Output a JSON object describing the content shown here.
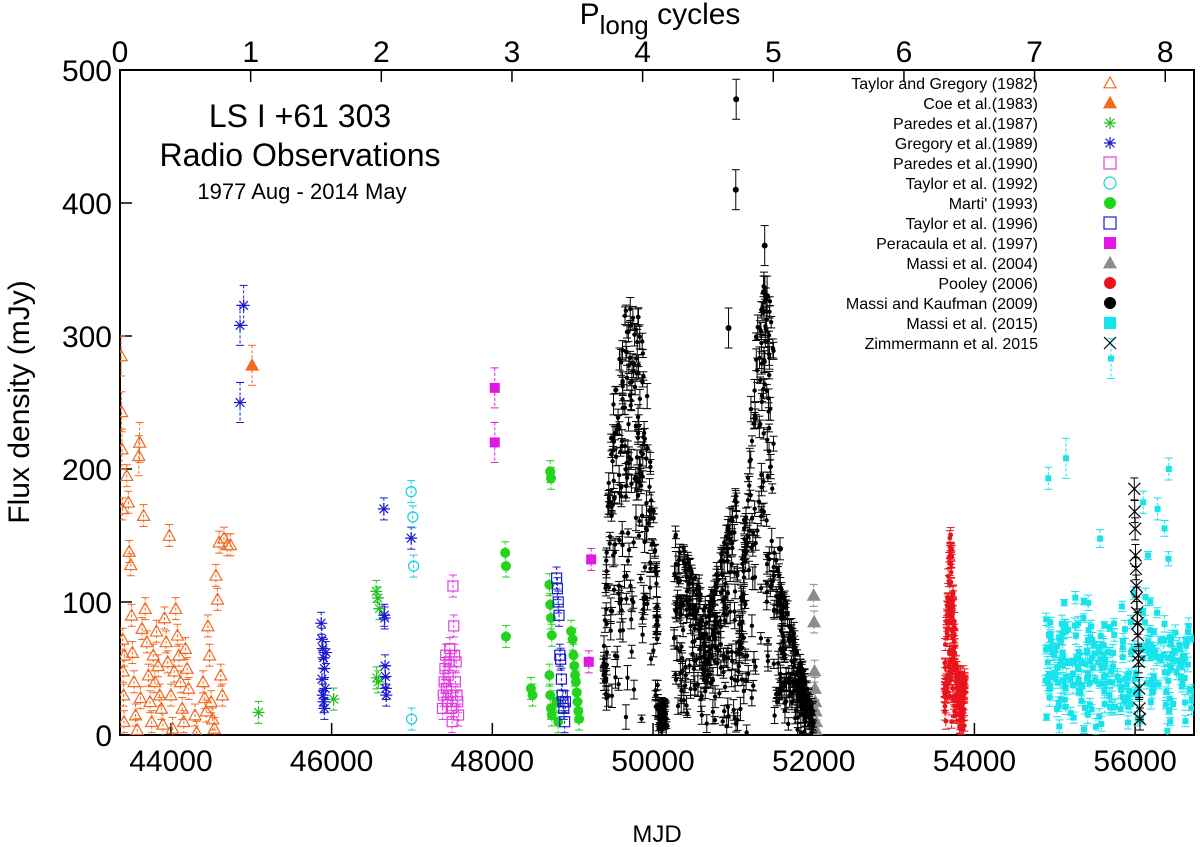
{
  "chart_data": {
    "type": "scatter",
    "annotation": {
      "line1": "LS I +61 303",
      "line2": "Radio Observations",
      "line3": "1977 Aug - 2014 May",
      "line1_color": "#e8141c"
    },
    "xlabel": "MJD",
    "ylabel": "Flux density (mJy)",
    "x2label_main": "P",
    "x2label_sub": "long",
    "x2label_rest": " cycles",
    "xlim": [
      43366,
      56733
    ],
    "ylim": [
      0,
      500
    ],
    "xticks": [
      {
        "v": 44000,
        "label": "44000"
      },
      {
        "v": 46000,
        "label": "46000"
      },
      {
        "v": 48000,
        "label": "48000"
      },
      {
        "v": 50000,
        "label": "50000"
      },
      {
        "v": 52000,
        "label": "52000"
      },
      {
        "v": 54000,
        "label": "54000"
      },
      {
        "v": 56000,
        "label": "56000"
      }
    ],
    "yticks": [
      {
        "v": 0,
        "label": "0"
      },
      {
        "v": 100,
        "label": "100"
      },
      {
        "v": 200,
        "label": "200"
      },
      {
        "v": 300,
        "label": "300"
      },
      {
        "v": 400,
        "label": "400"
      },
      {
        "v": 500,
        "label": "500"
      }
    ],
    "x2ticks": [
      {
        "v": 0,
        "label": "0"
      },
      {
        "v": 1,
        "label": "1"
      },
      {
        "v": 2,
        "label": "2"
      },
      {
        "v": 3,
        "label": "3"
      },
      {
        "v": 4,
        "label": "4"
      },
      {
        "v": 5,
        "label": "5"
      },
      {
        "v": 6,
        "label": "6"
      },
      {
        "v": 7,
        "label": "7"
      },
      {
        "v": 8,
        "label": "8"
      }
    ],
    "x2lim": [
      0,
      8.22
    ],
    "legend_position": "top-right",
    "series": [
      {
        "name": "Taylor and Gregory (1982)",
        "marker": "triangle-open",
        "color": "#f26a21",
        "points": [
          [
            43380,
            285
          ],
          [
            43385,
            243
          ],
          [
            43390,
            215
          ],
          [
            43395,
            170
          ],
          [
            43400,
            72
          ],
          [
            43405,
            48
          ],
          [
            43410,
            30
          ],
          [
            43415,
            10
          ],
          [
            43420,
            60
          ],
          [
            43450,
            195
          ],
          [
            43470,
            175
          ],
          [
            43480,
            138
          ],
          [
            43500,
            128
          ],
          [
            43510,
            90
          ],
          [
            43520,
            62
          ],
          [
            43540,
            40
          ],
          [
            43560,
            15
          ],
          [
            43580,
            4
          ],
          [
            43600,
            210
          ],
          [
            43610,
            220
          ],
          [
            43620,
            28
          ],
          [
            43640,
            80
          ],
          [
            43660,
            165
          ],
          [
            43680,
            95
          ],
          [
            43700,
            70
          ],
          [
            43720,
            45
          ],
          [
            43740,
            25
          ],
          [
            43760,
            10
          ],
          [
            43780,
            60
          ],
          [
            43800,
            40
          ],
          [
            43820,
            78
          ],
          [
            43840,
            52
          ],
          [
            43860,
            30
          ],
          [
            43880,
            20
          ],
          [
            43900,
            8
          ],
          [
            43920,
            88
          ],
          [
            43940,
            70
          ],
          [
            43960,
            55
          ],
          [
            43980,
            150
          ],
          [
            44000,
            30
          ],
          [
            44020,
            5
          ],
          [
            44040,
            48
          ],
          [
            44060,
            95
          ],
          [
            44080,
            75
          ],
          [
            44100,
            60
          ],
          [
            44120,
            40
          ],
          [
            44140,
            20
          ],
          [
            44160,
            10
          ],
          [
            44180,
            65
          ],
          [
            44200,
            50
          ],
          [
            44220,
            35
          ],
          [
            44300,
            15
          ],
          [
            44320,
            2
          ],
          [
            44400,
            40
          ],
          [
            44420,
            28
          ],
          [
            44440,
            18
          ],
          [
            44460,
            82
          ],
          [
            44480,
            60
          ],
          [
            44500,
            25
          ],
          [
            44520,
            12
          ],
          [
            44540,
            5
          ],
          [
            44560,
            120
          ],
          [
            44580,
            102
          ],
          [
            44600,
            145
          ],
          [
            44620,
            45
          ],
          [
            44640,
            30
          ],
          [
            44660,
            148
          ],
          [
            44700,
            143
          ],
          [
            44740,
            143
          ]
        ]
      },
      {
        "name": "Coe et al.(1983)",
        "marker": "triangle-filled",
        "color": "#f26a21",
        "points": [
          [
            45010,
            278
          ]
        ]
      },
      {
        "name": "Paredes et al.(1987)",
        "marker": "asterisk",
        "color": "#22c11f",
        "points": [
          [
            45090,
            17
          ],
          [
            46025,
            27
          ],
          [
            46555,
            108
          ],
          [
            46575,
            103
          ],
          [
            46595,
            95
          ],
          [
            46560,
            43
          ],
          [
            46580,
            40
          ]
        ]
      },
      {
        "name": "Gregory et al.(1989)",
        "marker": "asterisk",
        "color": "#1a1ad1",
        "points": [
          [
            44860,
            308
          ],
          [
            44905,
            323
          ],
          [
            44860,
            250
          ],
          [
            45870,
            84
          ],
          [
            45880,
            72
          ],
          [
            45890,
            65
          ],
          [
            45900,
            58
          ],
          [
            45910,
            50
          ],
          [
            45880,
            42
          ],
          [
            45890,
            30
          ],
          [
            45900,
            25
          ],
          [
            45910,
            20
          ],
          [
            45920,
            35
          ],
          [
            45930,
            62
          ],
          [
            46650,
            170
          ],
          [
            46655,
            90
          ],
          [
            46660,
            88
          ],
          [
            46665,
            52
          ],
          [
            46670,
            44
          ],
          [
            46675,
            35
          ],
          [
            46680,
            30
          ],
          [
            46990,
            148
          ]
        ]
      },
      {
        "name": "Paredes et al.(1990)",
        "marker": "square-open",
        "color": "#e040e0",
        "points": [
          [
            47380,
            20
          ],
          [
            47390,
            30
          ],
          [
            47400,
            40
          ],
          [
            47410,
            50
          ],
          [
            47420,
            60
          ],
          [
            47430,
            35
          ],
          [
            47440,
            25
          ],
          [
            47450,
            45
          ],
          [
            47460,
            55
          ],
          [
            47470,
            65
          ],
          [
            47480,
            30
          ],
          [
            47490,
            20
          ],
          [
            47500,
            10
          ],
          [
            47510,
            112
          ],
          [
            47520,
            82
          ],
          [
            47530,
            60
          ],
          [
            47540,
            40
          ],
          [
            47550,
            55
          ],
          [
            47560,
            30
          ],
          [
            47570,
            25
          ],
          [
            47580,
            15
          ]
        ]
      },
      {
        "name": "Taylor et al. (1992)",
        "marker": "circle-open",
        "color": "#16d0e0",
        "points": [
          [
            46990,
            183
          ],
          [
            47010,
            164
          ],
          [
            47020,
            127
          ],
          [
            46995,
            12
          ]
        ]
      },
      {
        "name": "Marti' (1993)",
        "marker": "circle-filled",
        "color": "#22d41c",
        "points": [
          [
            48160,
            137
          ],
          [
            48170,
            127
          ],
          [
            48170,
            74
          ],
          [
            48480,
            35
          ],
          [
            48500,
            30
          ],
          [
            48720,
            198
          ],
          [
            48730,
            193
          ],
          [
            48710,
            113
          ],
          [
            48720,
            98
          ],
          [
            48730,
            88
          ],
          [
            48740,
            75
          ],
          [
            48710,
            45
          ],
          [
            48720,
            30
          ],
          [
            48730,
            20
          ],
          [
            48740,
            15
          ],
          [
            48800,
            25
          ],
          [
            48820,
            10
          ],
          [
            48980,
            78
          ],
          [
            49000,
            72
          ],
          [
            49010,
            60
          ],
          [
            49020,
            52
          ],
          [
            49030,
            45
          ],
          [
            49040,
            40
          ],
          [
            49050,
            32
          ],
          [
            49060,
            25
          ],
          [
            49070,
            18
          ],
          [
            49080,
            12
          ]
        ]
      },
      {
        "name": "Taylor et al.  (1996)",
        "marker": "square-open",
        "color": "#1a1ad1",
        "points": [
          [
            48800,
            118
          ],
          [
            48810,
            110
          ],
          [
            48820,
            100
          ],
          [
            48830,
            90
          ],
          [
            48840,
            60
          ],
          [
            48850,
            57
          ],
          [
            48860,
            42
          ],
          [
            48870,
            30
          ],
          [
            48880,
            25
          ],
          [
            48890,
            20
          ],
          [
            48900,
            10
          ],
          [
            48910,
            25
          ]
        ]
      },
      {
        "name": "Peracaula et al. (1997)",
        "marker": "square-filled",
        "color": "#e018e0",
        "points": [
          [
            48030,
            261
          ],
          [
            48030,
            220
          ],
          [
            49230,
            132
          ],
          [
            49200,
            55
          ]
        ]
      },
      {
        "name": "Massi et al. (2004)",
        "marker": "triangle-filled",
        "color": "#8c8c8c",
        "points": [
          [
            52000,
            105
          ],
          [
            52005,
            85
          ],
          [
            52010,
            48
          ],
          [
            52015,
            35
          ],
          [
            52020,
            25
          ],
          [
            52025,
            18
          ],
          [
            52030,
            10
          ],
          [
            52035,
            3
          ]
        ]
      },
      {
        "name": "Pooley (2006)",
        "marker": "circle-filled",
        "color": "#e8141c",
        "cloud": {
          "x0": 53630,
          "x1": 53880,
          "n": 200,
          "peak": 155,
          "shape": "spike",
          "size": 2.4
        }
      },
      {
        "name": "Massi and Kaufman (2009)",
        "marker": "circle-filled",
        "color": "#000000",
        "cloud": {
          "x0": 49380,
          "x1": 52000,
          "n": 900,
          "shape": "mk09",
          "size": 2.2
        },
        "points": [
          [
            50940,
            306
          ],
          [
            51380,
            333
          ],
          [
            51390,
            368
          ],
          [
            51420,
            330
          ],
          [
            51035,
            478
          ],
          [
            51030,
            410
          ],
          [
            51580,
            140
          ],
          [
            51590,
            105
          ],
          [
            51600,
            88
          ]
        ]
      },
      {
        "name": "Massi et al. (2015)",
        "marker": "square-filled",
        "color": "#17e3ec",
        "cloud": {
          "x0": 54880,
          "x1": 56720,
          "n": 260,
          "shape": "mas15",
          "size": 3
        },
        "points": [
          [
            54920,
            193
          ],
          [
            55140,
            208
          ],
          [
            55700,
            283
          ],
          [
            56100,
            175
          ],
          [
            56280,
            170
          ],
          [
            56420,
            200
          ]
        ]
      },
      {
        "name": "Zimmermann et al. 2015",
        "marker": "cross",
        "color": "#000000",
        "points": [
          [
            55990,
            185
          ],
          [
            55995,
            168
          ],
          [
            56000,
            155
          ],
          [
            56005,
            135
          ],
          [
            56010,
            125
          ],
          [
            56015,
            112
          ],
          [
            56020,
            103
          ],
          [
            56025,
            92
          ],
          [
            56030,
            84
          ],
          [
            56035,
            75
          ],
          [
            56040,
            60
          ],
          [
            56045,
            55
          ],
          [
            56050,
            35
          ],
          [
            56055,
            20
          ],
          [
            56060,
            12
          ]
        ]
      }
    ]
  }
}
